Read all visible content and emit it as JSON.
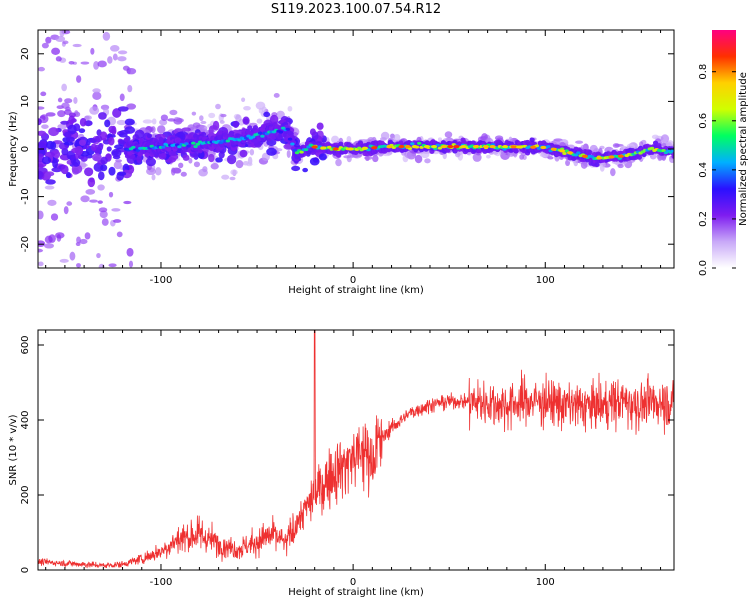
{
  "title": "S119.2023.100.07.54.R12",
  "chart_data": [
    {
      "type": "heatmap",
      "xlabel": "Height of straight line (km)",
      "ylabel": "Frequency (Hz)",
      "xlim": [
        -164,
        167
      ],
      "ylim": [
        -25,
        25
      ],
      "xticks": [
        -100,
        0,
        100
      ],
      "yticks": [
        -20,
        -10,
        0,
        10,
        20
      ],
      "colorbar": {
        "label": "Normalized spectral amplitude",
        "range": [
          0,
          0.97
        ],
        "ticks": [
          0.0,
          0.2,
          0.4,
          0.6,
          0.8
        ],
        "colormap": [
          "#ffffff",
          "#c8a8f8",
          "#7e1cf0",
          "#2a10ff",
          "#00b0ff",
          "#00ff60",
          "#d0ff00",
          "#ffd000",
          "#ff3000",
          "#ff0080"
        ]
      },
      "ridge": {
        "x": [
          -115,
          -100,
          -85,
          -70,
          -55,
          -42,
          -34,
          -30,
          -22,
          -10,
          0,
          20,
          40,
          60,
          80,
          100,
          110,
          125,
          140,
          155,
          165
        ],
        "freq": [
          0,
          0.5,
          1,
          1.5,
          2.5,
          3.5,
          4,
          -1,
          0.5,
          0,
          0,
          0.5,
          0.5,
          0.5,
          0.5,
          0.3,
          -0.5,
          -2,
          -1.5,
          0,
          -0.5
        ]
      }
    },
    {
      "type": "line",
      "xlabel": "Height of straight line (km)",
      "ylabel": "SNR (10 * v/v)",
      "xlim": [
        -164,
        167
      ],
      "ylim": [
        0,
        640
      ],
      "xticks": [
        -100,
        0,
        100
      ],
      "yticks": [
        0,
        200,
        400,
        600
      ],
      "series": [
        {
          "color": "#ee3030",
          "x": [
            -164,
            -150,
            -140,
            -130,
            -120,
            -110,
            -100,
            -90,
            -80,
            -70,
            -60,
            -50,
            -45,
            -40,
            -35,
            -30,
            -25,
            -20,
            -15,
            -10,
            -5,
            0,
            5,
            10,
            15,
            20,
            30,
            40,
            50,
            60,
            70,
            80,
            90,
            100,
            110,
            120,
            130,
            140,
            150,
            160,
            167
          ],
          "y": [
            22,
            18,
            15,
            12,
            15,
            30,
            50,
            85,
            95,
            70,
            55,
            75,
            90,
            90,
            70,
            120,
            160,
            200,
            230,
            260,
            280,
            300,
            315,
            300,
            350,
            380,
            420,
            440,
            450,
            450,
            445,
            440,
            450,
            450,
            440,
            435,
            440,
            450,
            440,
            450,
            445
          ]
        }
      ],
      "annotations": [
        {
          "x": -20,
          "y": 640,
          "label": "spike"
        }
      ]
    }
  ]
}
